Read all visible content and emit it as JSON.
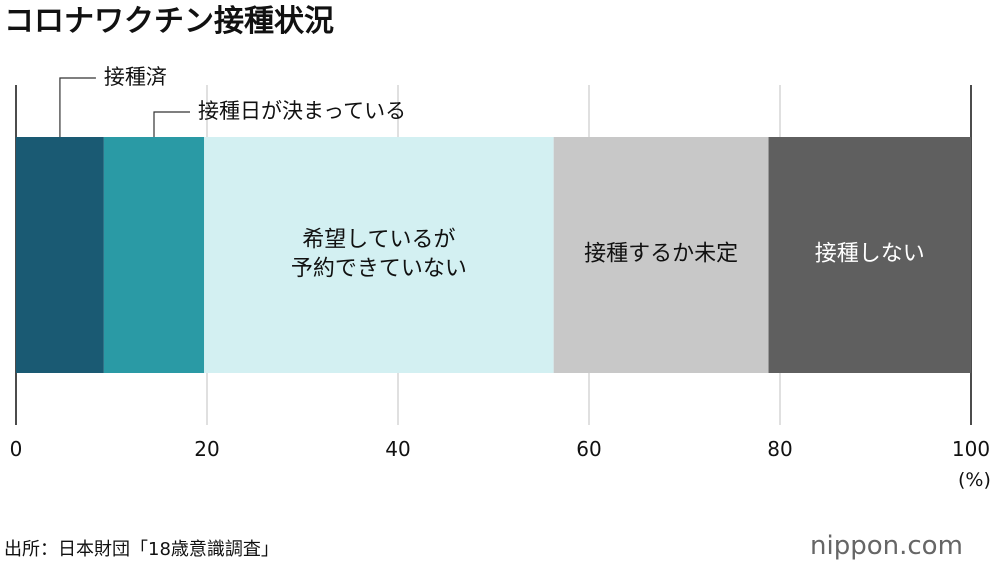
{
  "chart_data": {
    "type": "stacked-bar-100",
    "title": "コロナワクチン接種状況",
    "series": [
      {
        "name": "接種済",
        "color": "#1a5a73",
        "values": [
          9.2
        ]
      },
      {
        "name": "接種日が決まっている",
        "color": "#2a9aa5",
        "values": [
          10.5
        ]
      },
      {
        "name": "希望しているが\n予約できていない",
        "color": "#d3f0f2",
        "values": [
          36.6
        ]
      },
      {
        "name": "接種するか未定",
        "color": "#c8c8c8",
        "values": [
          22.5
        ]
      },
      {
        "name": "接種しない",
        "color": "#5f5f5f",
        "values": [
          21.2
        ]
      }
    ],
    "xlim": [
      0,
      100
    ],
    "xticks": [
      0,
      20,
      40,
      60,
      80,
      100
    ],
    "x_unit": "(%)",
    "grid": true,
    "source": "出所：日本財団「18歳意識調査」",
    "logo": "nippon.com"
  }
}
